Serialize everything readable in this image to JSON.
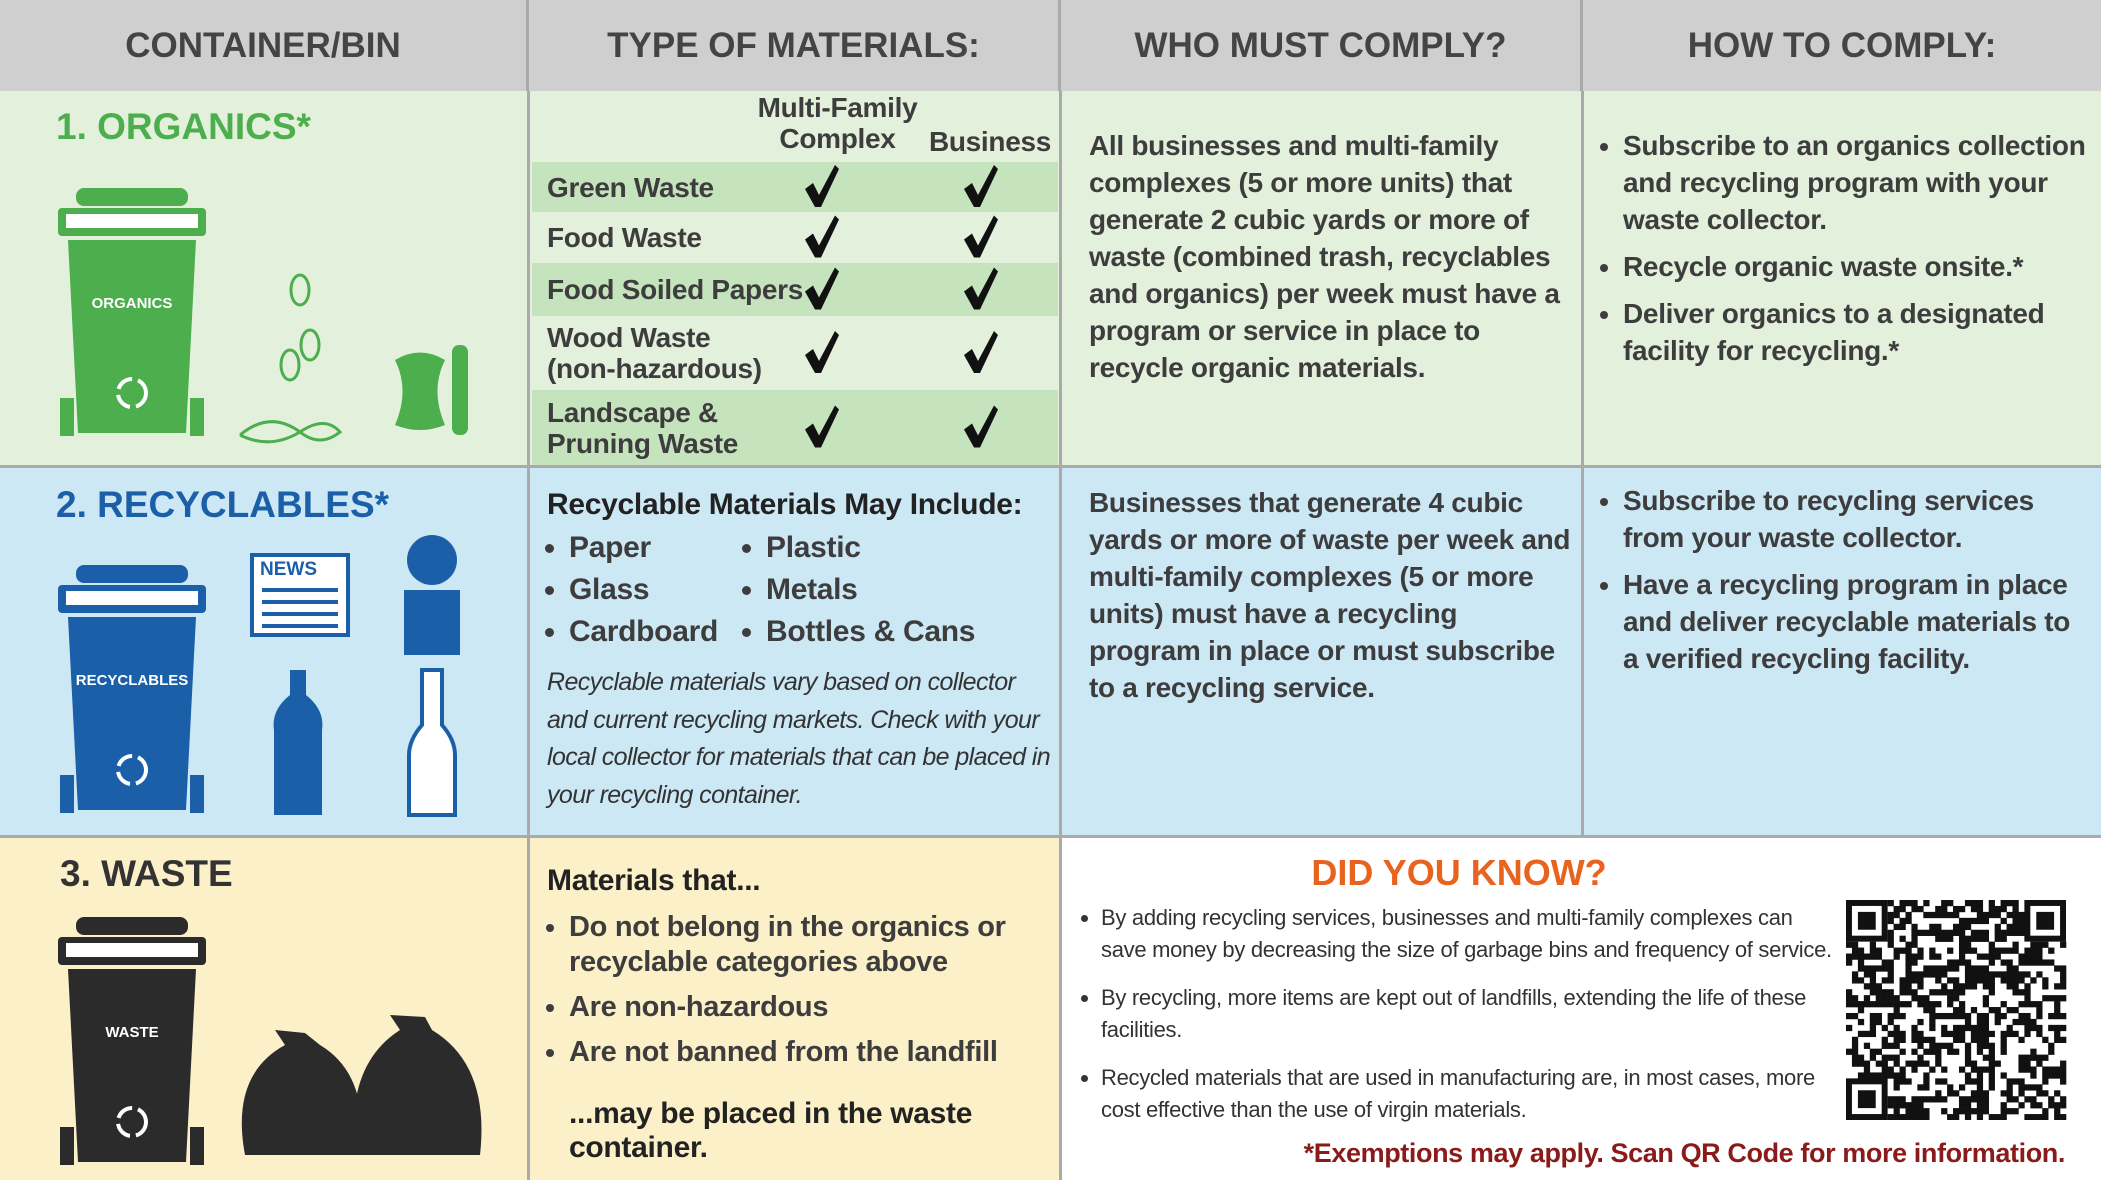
{
  "headers": [
    "CONTAINER/BIN",
    "TYPE OF MATERIALS:",
    "WHO MUST COMPLY?",
    "HOW TO COMPLY:"
  ],
  "organics": {
    "title": "1. ORGANICS*",
    "bin_label": "ORGANICS",
    "columns": [
      "Multi-Family Complex",
      "Business"
    ],
    "items": [
      "Green Waste",
      "Food Waste",
      "Food Soiled Papers",
      "Wood Waste (non-hazardous)",
      "Landscape & Pruning Waste"
    ],
    "who": "All businesses and multi-family complexes (5 or more units) that generate 2 cubic yards or more of waste (combined trash, recyclables and organics) per week must have a program or service in place to recycle organic materials.",
    "how": [
      "Subscribe to an organics collection and recycling program with your waste collector.",
      "Recycle organic waste onsite.*",
      "Deliver organics to a designated facility for recycling.*"
    ]
  },
  "recyclables": {
    "title": "2. RECYCLABLES*",
    "bin_label": "RECYCLABLES",
    "news_label": "NEWS",
    "heading": "Recyclable Materials May Include:",
    "items": [
      "Paper",
      "Plastic",
      "Glass",
      "Metals",
      "Cardboard",
      "Bottles & Cans"
    ],
    "note": "Recyclable materials vary based on collector and current recycling markets. Check with your local collector for materials that can be placed in your recycling container.",
    "who": "Businesses that generate 4 cubic yards or more of waste per week and multi-family complexes (5 or more units) must have a recycling program in place or must subscribe to a recycling service.",
    "how": [
      "Subscribe to recycling services from your waste collector.",
      "Have a recycling program in place and deliver recyclable materials to a verified recycling facility."
    ]
  },
  "waste": {
    "title": "3. WASTE",
    "bin_label": "WASTE",
    "heading": "Materials that...",
    "items": [
      "Do not belong in the organics or recyclable categories above",
      "Are non-hazardous",
      "Are not banned from the landfill"
    ],
    "closing": "...may be placed in the waste container."
  },
  "did_you_know": {
    "title": "DID YOU KNOW?",
    "items": [
      "By adding recycling services, businesses and multi-family complexes can save money by decreasing the size of garbage bins and frequency of service.",
      "By recycling, more items are kept out of landfills, extending the life of these facilities.",
      "Recycled materials that are used in manufacturing are, in most cases, more cost effective than the use of virgin materials."
    ],
    "footnote": "*Exemptions may apply. Scan QR Code for more information."
  }
}
